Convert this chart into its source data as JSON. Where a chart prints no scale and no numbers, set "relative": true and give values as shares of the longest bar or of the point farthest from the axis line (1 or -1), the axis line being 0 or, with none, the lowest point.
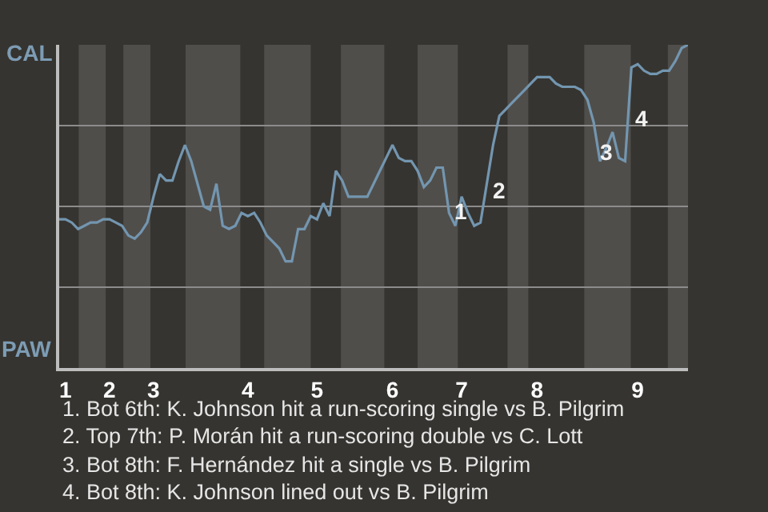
{
  "chart_data": {
    "type": "line",
    "categories": [
      null,
      "1",
      null,
      null,
      null,
      null,
      null,
      null,
      "2",
      null,
      null,
      null,
      null,
      null,
      null,
      "3",
      null,
      null,
      null,
      null,
      null,
      null,
      null,
      null,
      null,
      null,
      null,
      null,
      null,
      null,
      "4",
      null,
      null,
      null,
      null,
      null,
      null,
      null,
      null,
      null,
      null,
      "5",
      null,
      null,
      null,
      null,
      null,
      null,
      null,
      null,
      null,
      null,
      null,
      "6",
      null,
      null,
      null,
      null,
      null,
      null,
      null,
      null,
      null,
      null,
      "7",
      null,
      null,
      null,
      null,
      null,
      null,
      null,
      null,
      null,
      null,
      null,
      "8",
      null,
      null,
      null,
      null,
      null,
      null,
      null,
      null,
      null,
      null,
      null,
      null,
      null,
      null,
      null,
      "9",
      null,
      null,
      null,
      null,
      null,
      null,
      null,
      null
    ],
    "series": [
      {
        "color": "#7396b0",
        "values": [
          0.46,
          0.46,
          0.45,
          0.43,
          0.44,
          0.45,
          0.45,
          0.46,
          0.46,
          0.45,
          0.44,
          0.41,
          0.4,
          0.42,
          0.45,
          0.53,
          0.6,
          0.58,
          0.58,
          0.64,
          0.69,
          0.64,
          0.57,
          0.5,
          0.49,
          0.57,
          0.44,
          0.43,
          0.44,
          0.48,
          0.47,
          0.48,
          0.45,
          0.41,
          0.39,
          0.37,
          0.33,
          0.33,
          0.43,
          0.43,
          0.47,
          0.46,
          0.51,
          0.47,
          0.61,
          0.58,
          0.53,
          0.53,
          0.53,
          0.53,
          0.57,
          0.61,
          0.65,
          0.69,
          0.65,
          0.64,
          0.64,
          0.61,
          0.56,
          0.58,
          0.62,
          0.62,
          0.48,
          0.44,
          0.53,
          0.48,
          0.44,
          0.45,
          0.57,
          0.69,
          0.78,
          0.8,
          0.82,
          0.84,
          0.86,
          0.88,
          0.9,
          0.9,
          0.9,
          0.88,
          0.87,
          0.87,
          0.87,
          0.86,
          0.83,
          0.76,
          0.64,
          0.68,
          0.73,
          0.65,
          0.64,
          0.93,
          0.94,
          0.92,
          0.91,
          0.91,
          0.92,
          0.92,
          0.95,
          0.99,
          1.0
        ]
      }
    ],
    "relative": true,
    "grid": "y",
    "annotations": [
      "CAL",
      "PAW",
      "1",
      "2",
      "3",
      "4",
      "1. Bot 6th: K. Johnson hit a run-scoring single vs B. Pilgrim",
      "2. Top 7th: P. Morán hit a run-scoring double vs C. Lott",
      "3. Bot 8th: F. Hernández hit a single vs B. Pilgrim",
      "4. Bot 8th: K. Johnson lined out vs B. Pilgrim"
    ]
  }
}
